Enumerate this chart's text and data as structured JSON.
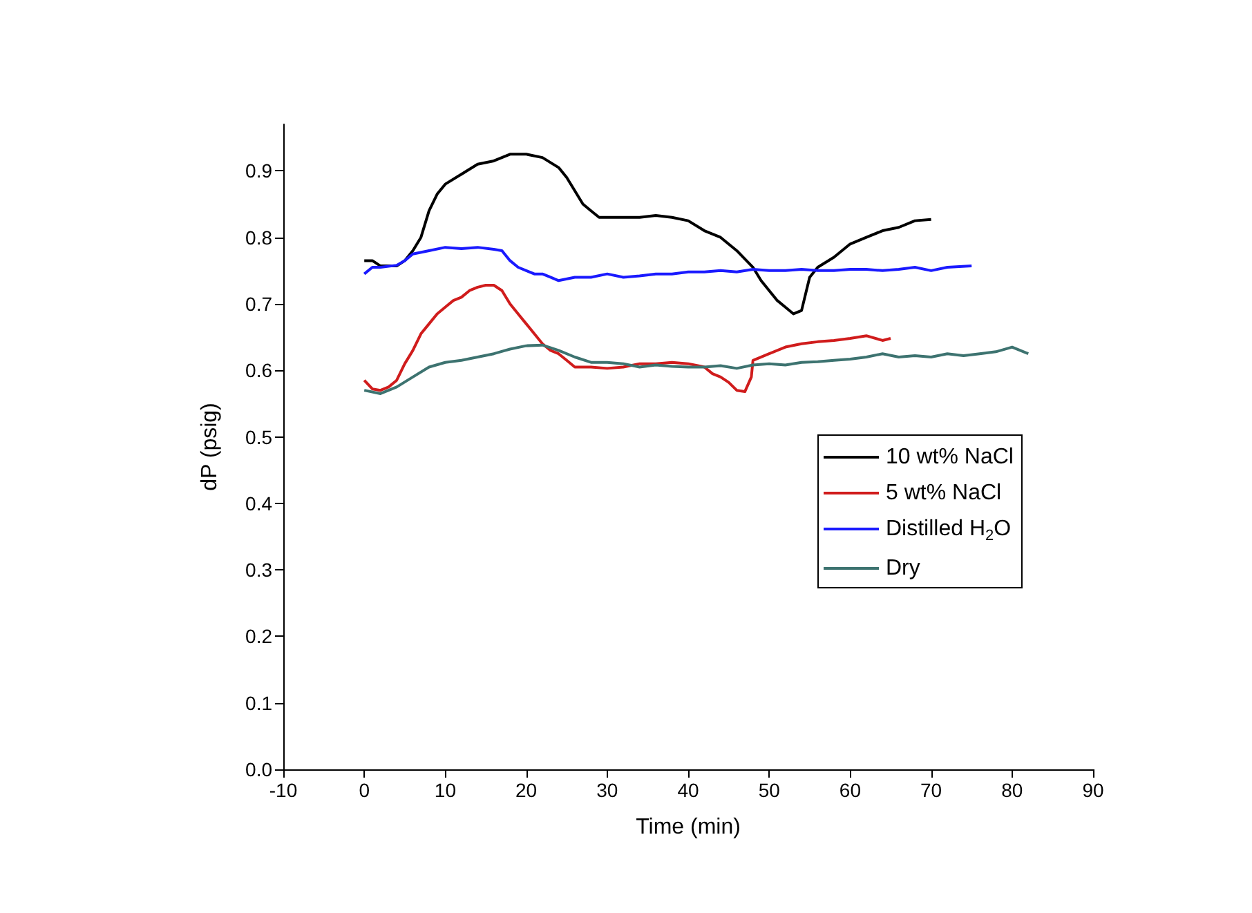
{
  "chart_data": {
    "type": "line",
    "xlabel": "Time (min)",
    "ylabel": "dP (psig)",
    "xlim": [
      -10,
      90
    ],
    "xticks": [
      -10,
      0,
      10,
      20,
      30,
      40,
      50,
      60,
      70,
      80,
      90
    ],
    "ylim": [
      0,
      0.97
    ],
    "yticks": [
      {
        "value": 0,
        "label": "0.0"
      },
      0.1,
      0.2,
      0.3,
      0.4,
      0.5,
      0.6,
      0.7,
      0.8,
      0.9
    ],
    "grid": false,
    "legend": "right",
    "marker": "none",
    "line_style": "solid",
    "series": [
      {
        "name": "10 wt% NaCl",
        "color": "#000000",
        "x": [
          0,
          1,
          2,
          4,
          5,
          6,
          7,
          8,
          9,
          10,
          12,
          14,
          16,
          18,
          20,
          22,
          24,
          25,
          26,
          27,
          28,
          29,
          30,
          32,
          34,
          36,
          38,
          40,
          42,
          44,
          46,
          48,
          49,
          50,
          51,
          52,
          53,
          54,
          55,
          56,
          58,
          60,
          62,
          64,
          66,
          68,
          70
        ],
        "values": [
          0.765,
          0.765,
          0.757,
          0.757,
          0.765,
          0.78,
          0.8,
          0.84,
          0.865,
          0.88,
          0.895,
          0.91,
          0.915,
          0.925,
          0.925,
          0.92,
          0.905,
          0.89,
          0.87,
          0.85,
          0.84,
          0.83,
          0.83,
          0.83,
          0.83,
          0.833,
          0.83,
          0.825,
          0.81,
          0.8,
          0.78,
          0.755,
          0.735,
          0.72,
          0.705,
          0.695,
          0.685,
          0.69,
          0.74,
          0.755,
          0.77,
          0.79,
          0.8,
          0.81,
          0.815,
          0.825,
          0.827
        ]
      },
      {
        "name": "5 wt% NaCl",
        "color": "#d01c1c",
        "x": [
          0,
          1,
          2,
          3,
          4,
          5,
          6,
          7,
          8,
          9,
          10,
          11,
          12,
          13,
          14,
          15,
          16,
          17,
          18,
          19,
          20,
          21,
          22,
          23,
          24,
          25,
          26,
          28,
          30,
          32,
          34,
          36,
          38,
          40,
          42,
          43,
          44,
          45,
          46,
          47,
          47.8,
          48,
          50,
          52,
          54,
          56,
          58,
          60,
          62,
          64,
          65
        ],
        "values": [
          0.585,
          0.572,
          0.57,
          0.575,
          0.585,
          0.61,
          0.63,
          0.655,
          0.67,
          0.685,
          0.695,
          0.705,
          0.71,
          0.72,
          0.725,
          0.728,
          0.728,
          0.72,
          0.7,
          0.685,
          0.67,
          0.655,
          0.64,
          0.63,
          0.625,
          0.615,
          0.605,
          0.605,
          0.603,
          0.605,
          0.61,
          0.61,
          0.612,
          0.61,
          0.605,
          0.595,
          0.59,
          0.582,
          0.57,
          0.568,
          0.59,
          0.615,
          0.625,
          0.635,
          0.64,
          0.643,
          0.645,
          0.648,
          0.652,
          0.645,
          0.648
        ]
      },
      {
        "name": "Distilled H$_{2}$O",
        "color": "#1a1aff",
        "x": [
          0,
          1,
          2,
          4,
          5,
          6,
          8,
          10,
          12,
          14,
          16,
          17,
          18,
          19,
          20,
          21,
          22,
          23,
          24,
          26,
          28,
          30,
          32,
          34,
          36,
          38,
          40,
          42,
          44,
          46,
          48,
          50,
          52,
          54,
          56,
          58,
          60,
          62,
          64,
          66,
          68,
          70,
          72,
          75
        ],
        "values": [
          0.745,
          0.755,
          0.755,
          0.758,
          0.765,
          0.775,
          0.78,
          0.785,
          0.783,
          0.785,
          0.782,
          0.78,
          0.765,
          0.755,
          0.75,
          0.745,
          0.745,
          0.74,
          0.735,
          0.74,
          0.74,
          0.745,
          0.74,
          0.742,
          0.745,
          0.745,
          0.748,
          0.748,
          0.75,
          0.748,
          0.752,
          0.75,
          0.75,
          0.752,
          0.75,
          0.75,
          0.752,
          0.752,
          0.75,
          0.752,
          0.755,
          0.75,
          0.755,
          0.757
        ]
      },
      {
        "name": "Dry",
        "color": "#3d7370",
        "x": [
          0,
          2,
          4,
          6,
          8,
          10,
          12,
          14,
          16,
          18,
          20,
          22,
          24,
          26,
          28,
          30,
          32,
          34,
          36,
          38,
          40,
          42,
          44,
          46,
          48,
          50,
          52,
          54,
          56,
          58,
          60,
          62,
          64,
          66,
          68,
          70,
          72,
          74,
          76,
          78,
          80,
          81,
          82
        ],
        "values": [
          0.57,
          0.565,
          0.575,
          0.59,
          0.605,
          0.612,
          0.615,
          0.62,
          0.625,
          0.632,
          0.637,
          0.638,
          0.63,
          0.62,
          0.612,
          0.612,
          0.61,
          0.605,
          0.608,
          0.606,
          0.605,
          0.605,
          0.607,
          0.603,
          0.608,
          0.61,
          0.608,
          0.612,
          0.613,
          0.615,
          0.617,
          0.62,
          0.625,
          0.62,
          0.622,
          0.62,
          0.625,
          0.622,
          0.625,
          0.628,
          0.635,
          0.63,
          0.625
        ]
      }
    ]
  }
}
